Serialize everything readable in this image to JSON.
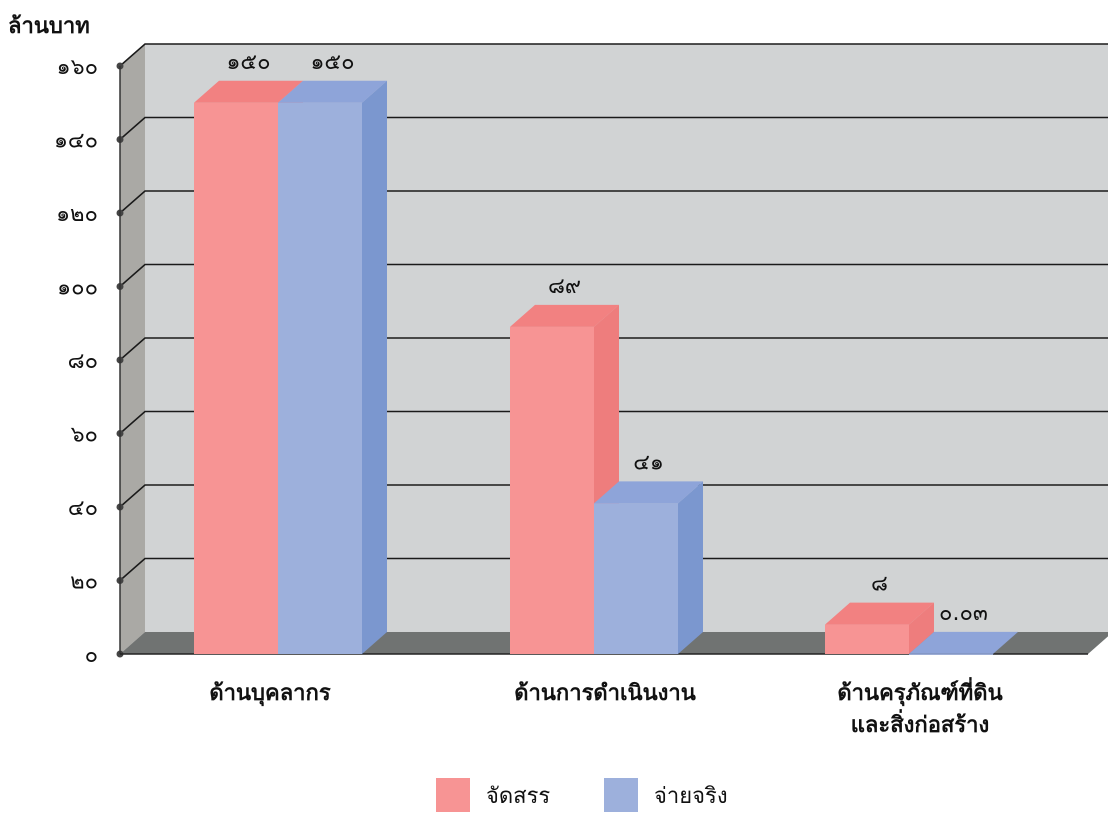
{
  "chart_data": {
    "type": "bar",
    "ylabel": "ล้านบาท",
    "ylim": [
      0,
      160
    ],
    "yticks": [
      0,
      20,
      40,
      60,
      80,
      100,
      120,
      140,
      160
    ],
    "ytick_labels": [
      "๐",
      "๒๐",
      "๔๐",
      "๖๐",
      "๘๐",
      "๑๐๐",
      "๑๒๐",
      "๑๔๐",
      "๑๖๐"
    ],
    "grid": true,
    "categories": [
      "ด้านบุคลากร",
      "ด้านการดำเนินงาน",
      "ด้านครุภัณฑ์ที่ดิน และสิ่งก่อสร้าง"
    ],
    "category_lines": [
      [
        "ด้านบุคลากร"
      ],
      [
        "ด้านการดำเนินงาน"
      ],
      [
        "ด้านครุภัณฑ์ที่ดิน",
        "และสิ่งก่อสร้าง"
      ]
    ],
    "series": [
      {
        "name": "จัดสรร",
        "values": [
          150,
          89,
          8
        ],
        "labels": [
          "๑๕๐",
          "๘๙",
          "๘"
        ],
        "color": "#f79494"
      },
      {
        "name": "จ่ายจริง",
        "values": [
          150,
          41,
          0.03
        ],
        "labels": [
          "๑๕๐",
          "๔๑",
          "๐.๐๓"
        ],
        "color": "#9db0dc"
      }
    ],
    "legend_position": "bottom"
  },
  "colors": {
    "plot_back": "#d1d3d4",
    "plot_side": "#aaa9a5",
    "plot_floor": "#707372",
    "red_front": "#f79494",
    "red_top": "#f28181",
    "red_side": "#ee7d7d",
    "blue_front": "#9db0dc",
    "blue_top": "#8ea4d9",
    "blue_side": "#7b97cf"
  }
}
